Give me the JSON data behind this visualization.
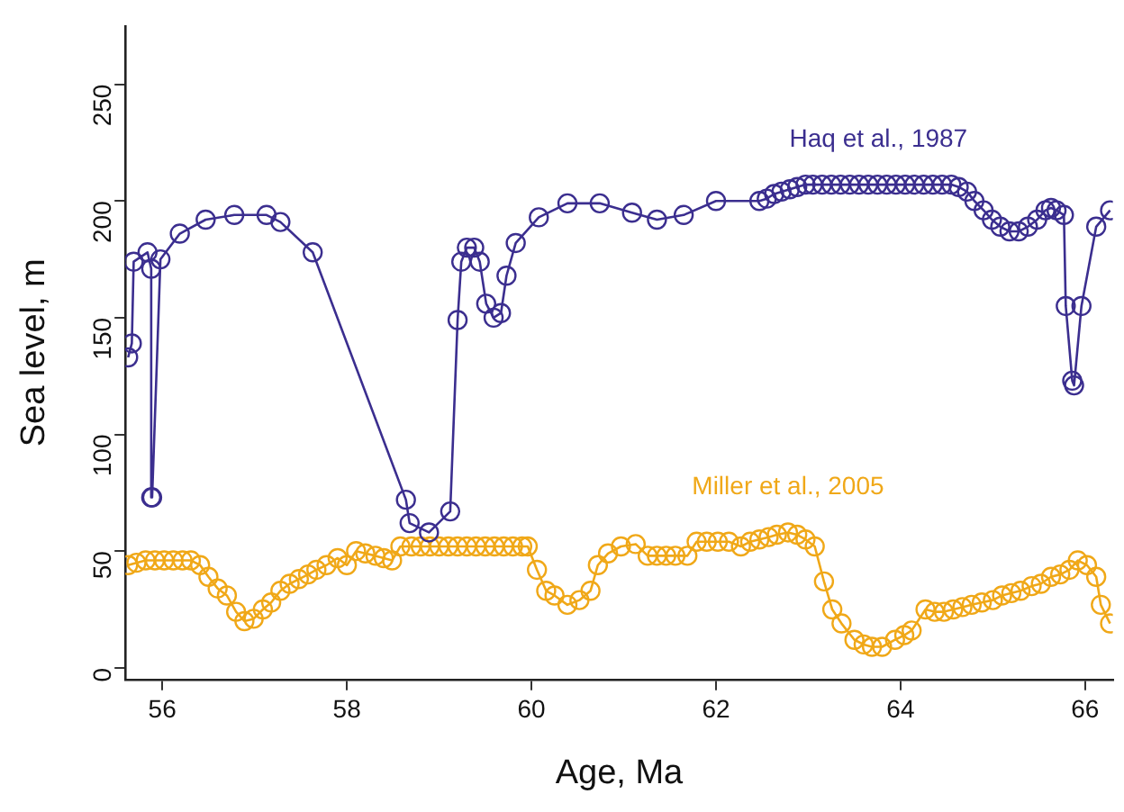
{
  "chart_data": {
    "type": "line",
    "xlabel": "Age, Ma",
    "ylabel": "Sea level, m",
    "xlim": [
      55.6,
      66.3
    ],
    "xticks": [
      56,
      58,
      60,
      62,
      64,
      66
    ],
    "ylim": [
      -5,
      275
    ],
    "yticks": [
      0,
      50,
      100,
      150,
      200,
      250
    ],
    "grid": false,
    "legend": false,
    "marker": "circle",
    "line_style": "solid",
    "series": [
      {
        "name": "Haq et al., 1987",
        "color": "#3b2e8f",
        "x": [
          55.63,
          55.67,
          55.69,
          55.84,
          55.88,
          55.88,
          55.89,
          55.98,
          56.19,
          56.47,
          56.78,
          57.13,
          57.28,
          57.63,
          58.64,
          58.68,
          58.89,
          59.12,
          59.2,
          59.24,
          59.3,
          59.38,
          59.44,
          59.51,
          59.59,
          59.67,
          59.73,
          59.83,
          60.08,
          60.39,
          60.74,
          61.09,
          61.36,
          61.65,
          62.0,
          62.47,
          62.55,
          62.63,
          62.71,
          62.8,
          62.88,
          62.97,
          63.05,
          63.15,
          63.25,
          63.35,
          63.45,
          63.55,
          63.65,
          63.75,
          63.85,
          63.95,
          64.05,
          64.15,
          64.25,
          64.35,
          64.45,
          64.55,
          64.63,
          64.72,
          64.8,
          64.9,
          64.99,
          65.08,
          65.18,
          65.28,
          65.38,
          65.48,
          65.57,
          65.63,
          65.69,
          65.77,
          65.79,
          65.86,
          65.88,
          65.96,
          66.12,
          66.27
        ],
        "values": [
          133,
          139,
          174,
          178,
          171,
          73,
          73,
          175,
          186,
          192,
          194,
          194,
          191,
          178,
          72,
          62,
          58,
          67,
          149,
          174,
          180,
          180,
          174,
          156,
          150,
          152,
          168,
          182,
          193,
          199,
          199,
          195,
          192,
          194,
          200,
          200,
          201,
          203,
          204,
          205,
          206,
          207,
          207,
          207,
          207,
          207,
          207,
          207,
          207,
          207,
          207,
          207,
          207,
          207,
          207,
          207,
          207,
          207,
          206,
          204,
          200,
          196,
          192,
          189,
          187,
          187,
          189,
          192,
          196,
          197,
          196,
          194,
          155,
          123,
          121,
          155,
          189,
          196
        ]
      },
      {
        "name": "Miller et al., 2005",
        "color": "#f0a818",
        "x": [
          55.63,
          55.72,
          55.82,
          55.92,
          56.02,
          56.12,
          56.22,
          56.31,
          56.41,
          56.5,
          56.6,
          56.7,
          56.8,
          56.89,
          56.99,
          57.09,
          57.18,
          57.28,
          57.38,
          57.48,
          57.58,
          57.67,
          57.78,
          57.9,
          58.0,
          58.1,
          58.2,
          58.31,
          58.4,
          58.49,
          58.58,
          58.7,
          58.8,
          58.9,
          59.0,
          59.1,
          59.2,
          59.3,
          59.4,
          59.5,
          59.6,
          59.7,
          59.8,
          59.9,
          59.96,
          60.06,
          60.16,
          60.25,
          60.39,
          60.52,
          60.64,
          60.72,
          60.83,
          60.97,
          61.13,
          61.26,
          61.36,
          61.46,
          61.56,
          61.69,
          61.79,
          61.9,
          62.02,
          62.14,
          62.27,
          62.37,
          62.47,
          62.57,
          62.66,
          62.78,
          62.88,
          62.97,
          63.07,
          63.17,
          63.26,
          63.36,
          63.5,
          63.6,
          63.69,
          63.8,
          63.94,
          64.04,
          64.12,
          64.27,
          64.37,
          64.47,
          64.57,
          64.67,
          64.77,
          64.88,
          65.0,
          65.1,
          65.2,
          65.3,
          65.42,
          65.52,
          65.63,
          65.73,
          65.83,
          65.92,
          66.02,
          66.12,
          66.17,
          66.27
        ],
        "values": [
          44,
          45,
          46,
          46,
          46,
          46,
          46,
          46,
          44,
          39,
          34,
          31,
          24,
          20,
          21,
          25,
          28,
          33,
          36,
          38,
          40,
          42,
          44,
          47,
          44,
          50,
          49,
          48,
          47,
          46,
          52,
          52,
          52,
          52,
          52,
          52,
          52,
          52,
          52,
          52,
          52,
          52,
          52,
          52,
          52,
          42,
          33,
          31,
          27,
          29,
          33,
          44,
          49,
          52,
          53,
          48,
          48,
          48,
          48,
          48,
          54,
          54,
          54,
          54,
          52,
          54,
          55,
          56,
          57,
          58,
          57,
          55,
          52,
          37,
          25,
          19,
          12,
          10,
          9,
          9,
          12,
          14,
          16,
          25,
          24,
          24,
          25,
          26,
          27,
          28,
          29,
          31,
          32,
          33,
          35,
          36,
          39,
          40,
          42,
          46,
          44,
          39,
          27,
          19
        ]
      }
    ]
  }
}
